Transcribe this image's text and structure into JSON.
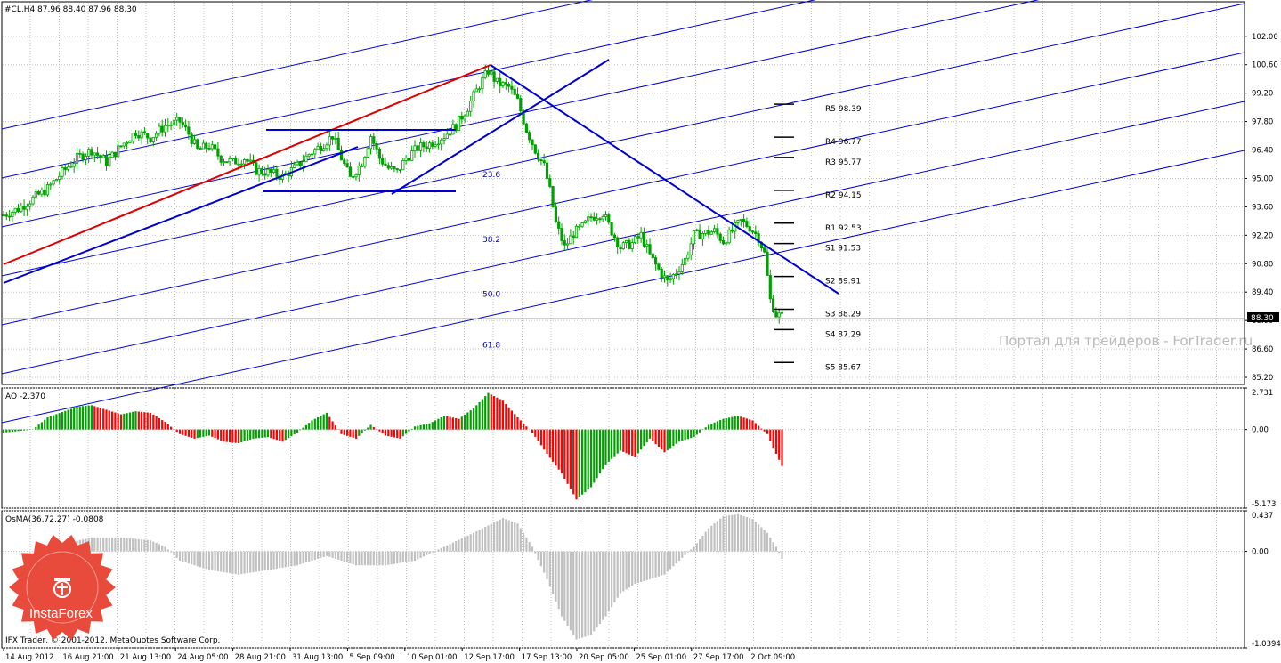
{
  "header": {
    "symbol_tf": "#CL,H4",
    "ohlc": "87.96 88.40 87.96 88.30"
  },
  "current_price": "88.30",
  "watermark": "Портал для трейдеров - ForTrader.ru",
  "copyright": "IFX Trader, © 2001-2012, MetaQuotes Software Corp.",
  "logo": {
    "text": "InstaForex"
  },
  "fibonacci": [
    {
      "label": "23.6",
      "price": 95.2
    },
    {
      "label": "38.2",
      "price": 92.0
    },
    {
      "label": "50.0",
      "price": 89.3
    },
    {
      "label": "61.8",
      "price": 86.8
    }
  ],
  "pivots": [
    {
      "label": "R5 98.39",
      "price": 98.39
    },
    {
      "label": "R4 96.77",
      "price": 96.77
    },
    {
      "label": "R3 95.77",
      "price": 95.77
    },
    {
      "label": "R2 94.15",
      "price": 94.15
    },
    {
      "label": "R1 92.53",
      "price": 92.53
    },
    {
      "label": "S1 91.53",
      "price": 91.53
    },
    {
      "label": "S2 89.91",
      "price": 89.91
    },
    {
      "label": "S3 88.29",
      "price": 88.29
    },
    {
      "label": "S4 87.29",
      "price": 87.29
    },
    {
      "label": "S5 85.67",
      "price": 85.67
    }
  ],
  "colors": {
    "bull": "#00a000",
    "bear": "#00a000",
    "ao_up": "#00a000",
    "ao_down": "#ff0000",
    "osma": "#c0c0c0",
    "trend_red": "#dd0000",
    "trend_blue": "#0000cc",
    "grid": "#c0c0c0"
  },
  "chart_data": [
    {
      "type": "candlestick",
      "title": "#CL,H4",
      "y_ticks": [
        "102.00",
        "100.60",
        "99.20",
        "97.80",
        "96.40",
        "95.00",
        "93.60",
        "92.20",
        "90.80",
        "89.40",
        "88.00",
        "86.60",
        "85.20"
      ],
      "ylim": [
        85.0,
        103.0
      ],
      "x_ticks": [
        "14 Aug 2012",
        "16 Aug 21:00",
        "21 Aug 13:00",
        "24 Aug 05:00",
        "28 Aug 21:00",
        "31 Aug 13:00",
        "5 Sep 09:00",
        "10 Sep 01:00",
        "12 Sep 17:00",
        "17 Sep 13:00",
        "20 Sep 05:00",
        "25 Sep 01:00",
        "27 Sep 17:00",
        "2 Oct 09:00"
      ],
      "close_path": [
        [
          0,
          93.2
        ],
        [
          5,
          93.5
        ],
        [
          10,
          94.0
        ],
        [
          15,
          94.5
        ],
        [
          20,
          95.3
        ],
        [
          25,
          96.0
        ],
        [
          30,
          96.4
        ],
        [
          35,
          95.8
        ],
        [
          40,
          96.6
        ],
        [
          45,
          97.3
        ],
        [
          50,
          97.0
        ],
        [
          55,
          97.6
        ],
        [
          60,
          97.8
        ],
        [
          63,
          97.2
        ],
        [
          66,
          96.4
        ],
        [
          70,
          96.6
        ],
        [
          74,
          96.0
        ],
        [
          78,
          95.8
        ],
        [
          82,
          96.0
        ],
        [
          86,
          95.4
        ],
        [
          90,
          95.3
        ],
        [
          95,
          95.1
        ],
        [
          100,
          95.6
        ],
        [
          104,
          96.2
        ],
        [
          108,
          96.6
        ],
        [
          112,
          97.1
        ],
        [
          115,
          96.0
        ],
        [
          118,
          95.0
        ],
        [
          122,
          95.8
        ],
        [
          125,
          97.1
        ],
        [
          128,
          96.0
        ],
        [
          131,
          95.5
        ],
        [
          134,
          95.3
        ],
        [
          137,
          96.0
        ],
        [
          141,
          96.5
        ],
        [
          145,
          96.7
        ],
        [
          150,
          97.1
        ],
        [
          154,
          97.6
        ],
        [
          158,
          98.5
        ],
        [
          162,
          99.6
        ],
        [
          165,
          100.3
        ],
        [
          168,
          99.7
        ],
        [
          172,
          99.5
        ],
        [
          175,
          98.8
        ],
        [
          178,
          97.4
        ],
        [
          181,
          96.4
        ],
        [
          184,
          95.6
        ],
        [
          186,
          94.4
        ],
        [
          188,
          92.8
        ],
        [
          191,
          91.6
        ],
        [
          194,
          92.3
        ],
        [
          197,
          92.6
        ],
        [
          200,
          93.1
        ],
        [
          204,
          93.3
        ],
        [
          207,
          92.4
        ],
        [
          210,
          91.6
        ],
        [
          214,
          91.8
        ],
        [
          217,
          92.2
        ],
        [
          220,
          91.2
        ],
        [
          223,
          90.5
        ],
        [
          226,
          89.9
        ],
        [
          229,
          90.4
        ],
        [
          232,
          91.0
        ],
        [
          235,
          92.2
        ],
        [
          238,
          92.3
        ],
        [
          242,
          92.4
        ],
        [
          245,
          91.9
        ],
        [
          248,
          92.4
        ],
        [
          251,
          92.9
        ],
        [
          254,
          92.6
        ],
        [
          257,
          92.1
        ],
        [
          259,
          91.3
        ],
        [
          261,
          89.0
        ],
        [
          263,
          88.3
        ],
        [
          265,
          88.2
        ]
      ]
    },
    {
      "type": "bar",
      "title": "AO -2.370",
      "y_ticks": [
        "2.731",
        "0.00",
        "-5.173"
      ],
      "ylim": [
        -5.173,
        2.731
      ],
      "series_name": "AO",
      "values_path": [
        [
          0,
          -0.2
        ],
        [
          10,
          0.0
        ],
        [
          15,
          0.8
        ],
        [
          25,
          1.5
        ],
        [
          30,
          1.6
        ],
        [
          35,
          1.3
        ],
        [
          40,
          1.0
        ],
        [
          45,
          1.2
        ],
        [
          50,
          1.1
        ],
        [
          55,
          0.5
        ],
        [
          60,
          -0.3
        ],
        [
          65,
          -0.6
        ],
        [
          70,
          -0.4
        ],
        [
          75,
          -0.8
        ],
        [
          80,
          -0.9
        ],
        [
          85,
          -0.6
        ],
        [
          90,
          -0.5
        ],
        [
          95,
          -0.8
        ],
        [
          100,
          -0.2
        ],
        [
          105,
          0.6
        ],
        [
          110,
          1.1
        ],
        [
          115,
          -0.3
        ],
        [
          120,
          -0.6
        ],
        [
          125,
          0.3
        ],
        [
          130,
          -0.4
        ],
        [
          135,
          -0.6
        ],
        [
          140,
          0.2
        ],
        [
          145,
          0.4
        ],
        [
          150,
          0.9
        ],
        [
          155,
          0.7
        ],
        [
          160,
          1.4
        ],
        [
          165,
          2.4
        ],
        [
          170,
          1.9
        ],
        [
          175,
          0.8
        ],
        [
          180,
          -0.2
        ],
        [
          185,
          -1.6
        ],
        [
          190,
          -2.9
        ],
        [
          195,
          -4.6
        ],
        [
          200,
          -3.8
        ],
        [
          205,
          -2.3
        ],
        [
          210,
          -1.4
        ],
        [
          215,
          -1.8
        ],
        [
          220,
          -0.6
        ],
        [
          225,
          -1.5
        ],
        [
          230,
          -0.8
        ],
        [
          235,
          -0.5
        ],
        [
          240,
          0.3
        ],
        [
          245,
          0.7
        ],
        [
          250,
          0.9
        ],
        [
          255,
          0.6
        ],
        [
          260,
          -0.3
        ],
        [
          262,
          -1.2
        ],
        [
          265,
          -2.4
        ]
      ]
    },
    {
      "type": "bar",
      "title": "OsMA(36,72,27) -0.0808",
      "y_ticks": [
        "0.437",
        "0.00",
        "-1.0394"
      ],
      "ylim": [
        -1.0394,
        0.437
      ],
      "series_name": "OsMA(36,72,27)",
      "values_path": [
        [
          0,
          0.0
        ],
        [
          10,
          0.0
        ],
        [
          20,
          0.08
        ],
        [
          30,
          0.15
        ],
        [
          40,
          0.15
        ],
        [
          50,
          0.12
        ],
        [
          55,
          0.05
        ],
        [
          60,
          -0.1
        ],
        [
          70,
          -0.2
        ],
        [
          80,
          -0.25
        ],
        [
          90,
          -0.2
        ],
        [
          100,
          -0.15
        ],
        [
          110,
          -0.05
        ],
        [
          115,
          -0.1
        ],
        [
          120,
          -0.15
        ],
        [
          130,
          -0.15
        ],
        [
          140,
          -0.1
        ],
        [
          150,
          0.05
        ],
        [
          160,
          0.2
        ],
        [
          170,
          0.36
        ],
        [
          175,
          0.3
        ],
        [
          180,
          0.05
        ],
        [
          185,
          -0.3
        ],
        [
          190,
          -0.7
        ],
        [
          195,
          -0.95
        ],
        [
          200,
          -0.9
        ],
        [
          205,
          -0.7
        ],
        [
          210,
          -0.45
        ],
        [
          215,
          -0.35
        ],
        [
          220,
          -0.3
        ],
        [
          225,
          -0.25
        ],
        [
          230,
          -0.1
        ],
        [
          235,
          0.05
        ],
        [
          240,
          0.25
        ],
        [
          245,
          0.38
        ],
        [
          250,
          0.4
        ],
        [
          255,
          0.35
        ],
        [
          260,
          0.2
        ],
        [
          263,
          0.05
        ],
        [
          265,
          -0.08
        ]
      ]
    }
  ]
}
